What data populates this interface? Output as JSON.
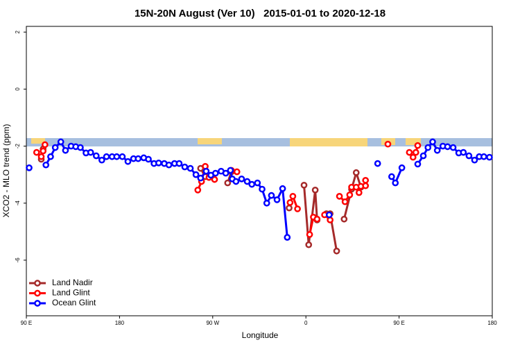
{
  "chart_data": {
    "type": "line",
    "title": "15N-20N August (Ver 10)   2015-01-01 to 2020-12-18",
    "x_label": "Longitude",
    "y_label": "XCO2 - MLO trend (ppm)",
    "xlim": [
      0,
      5
    ],
    "xticks": [
      {
        "value": 0,
        "label": "90 E"
      },
      {
        "value": 1,
        "label": "180"
      },
      {
        "value": 2,
        "label": "90 W"
      },
      {
        "value": 3,
        "label": "0"
      },
      {
        "value": 4,
        "label": "90 E"
      },
      {
        "value": 5,
        "label": "180"
      }
    ],
    "ylim": [
      -7.95,
      2.2
    ],
    "yticks": [
      -6,
      -4,
      -2,
      0,
      2
    ],
    "legend": "bottom-left",
    "series": [
      {
        "name": "Land Nadir",
        "color": "#a52a2a",
        "x": [
          0.16,
          0.18,
          null,
          1.87,
          1.92,
          null,
          2.16,
          2.2,
          null,
          2.82,
          null,
          2.98,
          3.03,
          3.1,
          3.12,
          null,
          3.22,
          3.26,
          3.33,
          null,
          3.41,
          3.49,
          3.54,
          3.59
        ],
        "values": [
          -2.46,
          -2.1,
          null,
          -2.78,
          -3.07,
          null,
          -3.29,
          -2.9,
          null,
          -4.17,
          null,
          -3.37,
          -5.46,
          -3.54,
          -4.59,
          null,
          -4.37,
          -4.37,
          -5.68,
          null,
          -4.56,
          -3.51,
          -2.93,
          -3.44
        ]
      },
      {
        "name": "Land Glint",
        "color": "#ff0000",
        "x": [
          0.11,
          0.16,
          0.18,
          0.2,
          null,
          1.84,
          1.88,
          1.92,
          1.96,
          2.02,
          null,
          2.2,
          2.26,
          null,
          2.83,
          2.86,
          2.91,
          null,
          3.04,
          3.08,
          3.12,
          null,
          3.2,
          3.26,
          null,
          3.36,
          3.42,
          3.47,
          3.49,
          3.54,
          3.57,
          3.59,
          3.64,
          3.64,
          null,
          3.88,
          null,
          4.11,
          4.15,
          4.18,
          4.2
        ],
        "values": [
          -2.22,
          -2.37,
          -2.17,
          -1.95,
          null,
          -3.54,
          -3.24,
          -2.71,
          -3.1,
          -3.17,
          null,
          -2.85,
          -2.9,
          null,
          -3.98,
          -3.76,
          -4.2,
          null,
          -5.1,
          -4.49,
          -4.56,
          null,
          -4.41,
          -4.59,
          null,
          -3.76,
          -3.95,
          -3.71,
          -3.44,
          -3.44,
          -3.63,
          -3.41,
          -3.39,
          -3.2,
          null,
          -1.93,
          null,
          -2.22,
          -2.39,
          -2.22,
          -1.98
        ]
      },
      {
        "name": "Ocean Glint",
        "color": "#0000ff",
        "x": [
          0.03,
          null,
          0.21,
          0.26,
          0.31,
          0.37,
          0.42,
          0.48,
          0.53,
          0.58,
          0.64,
          0.69,
          0.75,
          0.81,
          0.86,
          0.92,
          0.97,
          1.03,
          1.09,
          1.15,
          1.2,
          1.26,
          1.31,
          1.37,
          1.42,
          1.48,
          1.53,
          1.59,
          1.64,
          1.7,
          1.76,
          1.82,
          1.87,
          1.93,
          1.98,
          2.03,
          2.09,
          2.14,
          2.19,
          2.21,
          2.25,
          2.31,
          2.37,
          2.42,
          2.48,
          2.53,
          2.58,
          2.63,
          2.69,
          2.75,
          2.8,
          null,
          3.25,
          null,
          3.77,
          null,
          3.92,
          3.96,
          4.03,
          null,
          4.2,
          4.26,
          4.31,
          4.36,
          4.41,
          4.47,
          4.52,
          4.58,
          4.64,
          4.69,
          4.75,
          4.81,
          4.86,
          4.91,
          4.97
        ],
        "values": [
          -2.76,
          null,
          -2.66,
          -2.37,
          -2.05,
          -1.85,
          -2.15,
          -2.0,
          -2.02,
          -2.05,
          -2.24,
          -2.22,
          -2.34,
          -2.49,
          -2.37,
          -2.37,
          -2.37,
          -2.37,
          -2.54,
          -2.44,
          -2.44,
          -2.41,
          -2.46,
          -2.61,
          -2.59,
          -2.61,
          -2.66,
          -2.61,
          -2.61,
          -2.73,
          -2.78,
          -3.0,
          -3.12,
          -2.88,
          -3.02,
          -2.95,
          -2.88,
          -2.95,
          -2.85,
          -3.15,
          -3.24,
          -3.15,
          -3.24,
          -3.34,
          -3.29,
          -3.51,
          -4.0,
          -3.73,
          -3.88,
          -3.49,
          -5.2,
          null,
          -4.41,
          null,
          -2.61,
          null,
          -3.07,
          -3.29,
          -2.76,
          null,
          -2.63,
          -2.34,
          -2.05,
          -1.85,
          -2.15,
          -2.0,
          -2.02,
          -2.05,
          -2.24,
          -2.22,
          -2.34,
          -2.49,
          -2.37,
          -2.37,
          -2.39
        ]
      }
    ]
  }
}
